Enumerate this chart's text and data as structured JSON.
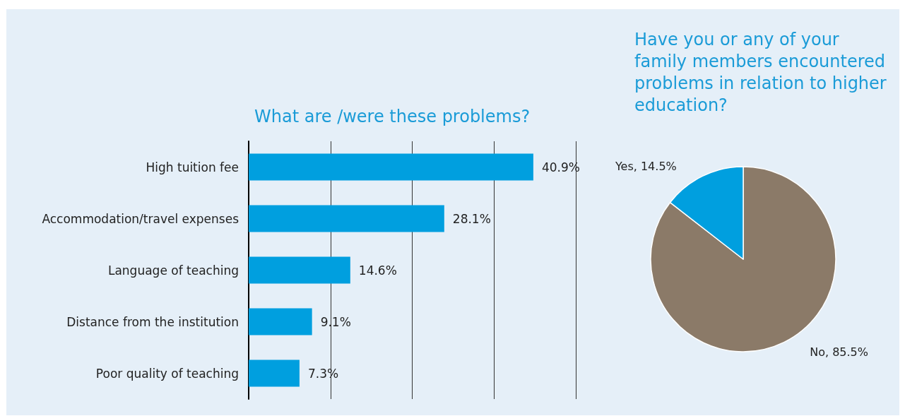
{
  "chart_data": [
    {
      "type": "bar",
      "orientation": "horizontal",
      "title": "What are /were these problems?",
      "categories": [
        "High tuition fee",
        "Accommodation/travel expenses",
        "Language of teaching",
        "Distance from the institution",
        "Poor quality of teaching"
      ],
      "values": [
        40.9,
        28.1,
        14.6,
        9.1,
        7.3
      ],
      "value_labels": [
        "40.9%",
        "28.1%",
        "14.6%",
        "9.1%",
        "7.3%"
      ],
      "color": "#009fdf",
      "xlim": [
        0,
        47
      ],
      "xticks": [
        {
          "value": 0,
          "label": null
        },
        {
          "value": 11.75,
          "label": null
        },
        {
          "value": 23.5,
          "label": null
        },
        {
          "value": 35.25,
          "label": null
        },
        {
          "value": 47,
          "label": null
        }
      ],
      "grid": "x",
      "tick_labels": "y",
      "legend": false
    },
    {
      "type": "pie",
      "title": "Have you or any of your family members encountered problems in relation to higher education?",
      "categories": [
        "No",
        "Yes"
      ],
      "values": [
        85.5,
        14.5
      ],
      "value_labels": [
        "85.5%",
        "14.5%"
      ],
      "colors": [
        "#8b7a68",
        "#009fdf"
      ],
      "legend": false
    }
  ]
}
